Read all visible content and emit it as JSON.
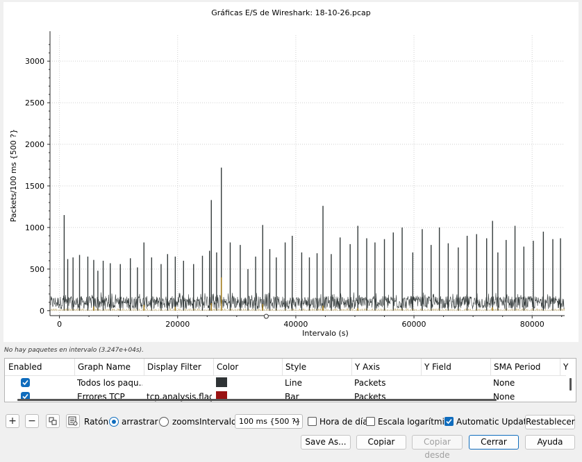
{
  "chart_data": {
    "type": "line",
    "title": "Gráficas E/S de Wireshark: 18-10-26.pcap",
    "xlabel": "Intervalo (s)",
    "ylabel": "Packets/100 ms {500 ?}",
    "xlim": [
      -1600,
      85500
    ],
    "ylim": [
      -60,
      3310
    ],
    "x_ticks": [
      0,
      20000,
      40000,
      60000,
      80000
    ],
    "x_tick_labels": [
      "0",
      "20000",
      "40000",
      "60000",
      "80000"
    ],
    "y_ticks": [
      0,
      500,
      1000,
      1500,
      2000,
      2500,
      3000
    ],
    "y_tick_labels": [
      "0",
      "500",
      "1000",
      "1500",
      "2000",
      "2500",
      "3000"
    ],
    "grid": true,
    "series": [
      {
        "name": "Todos los paquetes",
        "color": "#333a3a",
        "style": "line",
        "baseline_peak": 220,
        "spikes": [
          [
            800,
            1150
          ],
          [
            1400,
            620
          ],
          [
            2300,
            640
          ],
          [
            3400,
            670
          ],
          [
            4800,
            650
          ],
          [
            5800,
            610
          ],
          [
            6500,
            480
          ],
          [
            7400,
            600
          ],
          [
            8600,
            570
          ],
          [
            10300,
            560
          ],
          [
            12000,
            630
          ],
          [
            13200,
            520
          ],
          [
            14300,
            820
          ],
          [
            15600,
            640
          ],
          [
            17200,
            560
          ],
          [
            18300,
            680
          ],
          [
            19600,
            650
          ],
          [
            21000,
            600
          ],
          [
            22700,
            560
          ],
          [
            24200,
            660
          ],
          [
            25400,
            720
          ],
          [
            25700,
            1330
          ],
          [
            26600,
            700
          ],
          [
            27400,
            1720
          ],
          [
            28900,
            820
          ],
          [
            30600,
            790
          ],
          [
            31900,
            500
          ],
          [
            33200,
            650
          ],
          [
            34400,
            1030
          ],
          [
            35600,
            740
          ],
          [
            36700,
            640
          ],
          [
            38200,
            820
          ],
          [
            39400,
            900
          ],
          [
            41000,
            700
          ],
          [
            42300,
            640
          ],
          [
            43600,
            690
          ],
          [
            44600,
            1260
          ],
          [
            46000,
            680
          ],
          [
            47500,
            880
          ],
          [
            49200,
            800
          ],
          [
            50500,
            1020
          ],
          [
            52000,
            870
          ],
          [
            53400,
            820
          ],
          [
            55000,
            860
          ],
          [
            56500,
            940
          ],
          [
            58000,
            1000
          ],
          [
            59800,
            700
          ],
          [
            61400,
            980
          ],
          [
            62900,
            790
          ],
          [
            64300,
            1000
          ],
          [
            65800,
            810
          ],
          [
            67500,
            760
          ],
          [
            69000,
            900
          ],
          [
            70600,
            920
          ],
          [
            72300,
            870
          ],
          [
            73300,
            1080
          ],
          [
            74200,
            700
          ],
          [
            75600,
            850
          ],
          [
            77100,
            1020
          ],
          [
            78600,
            770
          ],
          [
            80200,
            840
          ],
          [
            81900,
            950
          ],
          [
            83500,
            860
          ],
          [
            84800,
            870
          ]
        ]
      },
      {
        "name": "Errores TCP",
        "color": "#9a1212",
        "style": "bar",
        "bars": [
          [
            5800,
            50
          ],
          [
            14300,
            70
          ],
          [
            19600,
            45
          ],
          [
            25700,
            90
          ],
          [
            27400,
            400
          ],
          [
            34400,
            80
          ],
          [
            44600,
            60
          ],
          [
            50500,
            30
          ],
          [
            73300,
            40
          ]
        ]
      }
    ]
  },
  "status_text": "No hay paquetes en intervalo (3.247e+04s).",
  "graph_table": {
    "headers": [
      "Enabled",
      "Graph Name",
      "Display Filter",
      "Color",
      "Style",
      "Y Axis",
      "Y Field",
      "SMA Period",
      "Y"
    ],
    "rows": [
      {
        "enabled": true,
        "name": "Todos los paqu...",
        "filter": "",
        "color": "#2e3335",
        "style": "Line",
        "y_axis": "Packets",
        "y_field": "",
        "sma": "None"
      },
      {
        "enabled": true,
        "name": "Errores TCP",
        "filter": "tcp.analysis.flags",
        "color": "#9a1212",
        "style": "Bar",
        "y_axis": "Packets",
        "y_field": "",
        "sma": "None"
      }
    ]
  },
  "toolbar": {
    "add_icon": "plus-icon",
    "remove_icon": "minus-icon",
    "copy_icon": "copy-graph-icon",
    "clear_icon": "clear-list-icon",
    "mouse_label": "Ratón",
    "drag_label": "arrastrar",
    "zoom_label": "zooms",
    "mouse_mode": "arrastrar",
    "interval_label": "Intervalo",
    "interval_value": "100 ms {500 ?}",
    "time_of_day_label": "Hora de día",
    "time_of_day": false,
    "log_scale_label": "Escala logarítmica",
    "log_scale": false,
    "auto_update_label": "Automatic Update",
    "auto_update": true,
    "reset_label": "Restablecer"
  },
  "buttons": {
    "save_as": "Save As...",
    "copy": "Copiar",
    "copy_from": "Copiar desde",
    "close": "Cerrar",
    "help": "Ayuda"
  }
}
